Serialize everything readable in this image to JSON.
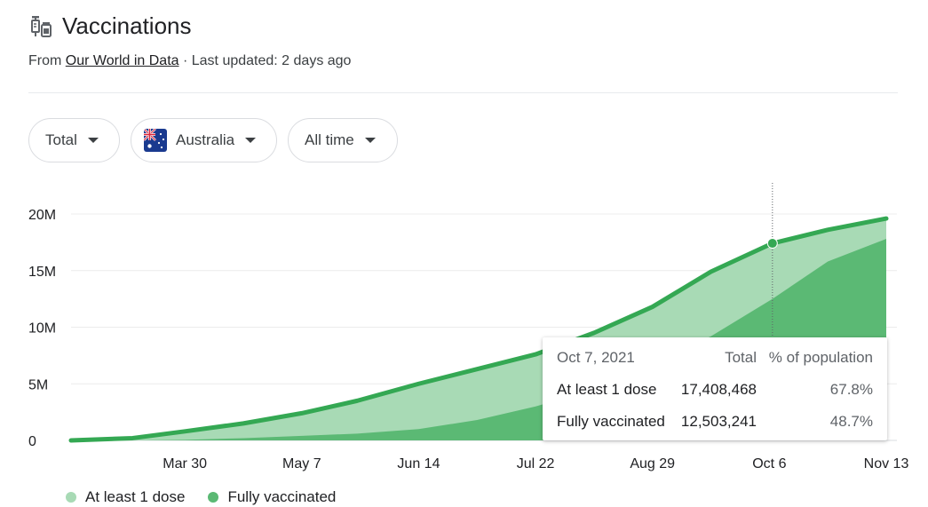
{
  "header": {
    "title": "Vaccinations",
    "source_prefix": "From",
    "source_link": "Our World in Data",
    "updated": "· Last updated: 2 days ago"
  },
  "controls": {
    "metric": "Total",
    "country": "Australia",
    "range": "All time"
  },
  "chart_data": {
    "type": "area",
    "x": [
      "2021-02-21",
      "2021-03-13",
      "2021-03-30",
      "2021-04-18",
      "2021-05-07",
      "2021-05-25",
      "2021-06-14",
      "2021-07-03",
      "2021-07-22",
      "2021-08-10",
      "2021-08-29",
      "2021-09-17",
      "2021-10-07",
      "2021-10-25",
      "2021-11-13"
    ],
    "x_ticks": [
      "Mar 30",
      "May 7",
      "Jun 14",
      "Jul 22",
      "Aug 29",
      "Oct 6",
      "Nov 13"
    ],
    "x_tick_dates": [
      "2021-03-30",
      "2021-05-07",
      "2021-06-14",
      "2021-07-22",
      "2021-08-29",
      "2021-10-06",
      "2021-11-13"
    ],
    "y_ticks": [
      "0",
      "5M",
      "10M",
      "15M",
      "20M"
    ],
    "ylim": [
      0,
      20000000
    ],
    "series": [
      {
        "name": "At least 1 dose",
        "color": "#a8dab5",
        "line_color": "#34a853",
        "values": [
          0,
          200000,
          800000,
          1500000,
          2400000,
          3500000,
          5000000,
          6300000,
          7600000,
          9500000,
          11800000,
          14900000,
          17408468,
          18600000,
          19600000
        ]
      },
      {
        "name": "Fully vaccinated",
        "color": "#5bb974",
        "values": [
          0,
          0,
          50000,
          200000,
          400000,
          600000,
          1000000,
          1800000,
          3000000,
          4500000,
          6800000,
          9200000,
          12503241,
          15800000,
          17800000
        ]
      }
    ],
    "marker": {
      "date": "2021-10-07",
      "value": 17408468
    },
    "grid": true,
    "legend": "bottom-left"
  },
  "tooltip": {
    "date": "Oct 7, 2021",
    "col_total": "Total",
    "col_pct": "% of population",
    "rows": [
      {
        "label": "At least 1 dose",
        "total": "17,408,468",
        "pct": "67.8%"
      },
      {
        "label": "Fully vaccinated",
        "total": "12,503,241",
        "pct": "48.7%"
      }
    ]
  },
  "legend": {
    "items": [
      {
        "label": "At least 1 dose",
        "color": "#a8dab5"
      },
      {
        "label": "Fully vaccinated",
        "color": "#5bb974"
      }
    ]
  },
  "icons": {
    "title_icon": "syringe-vial-icon",
    "dropdown": "caret-down-icon",
    "flag": "australia-flag-icon"
  }
}
